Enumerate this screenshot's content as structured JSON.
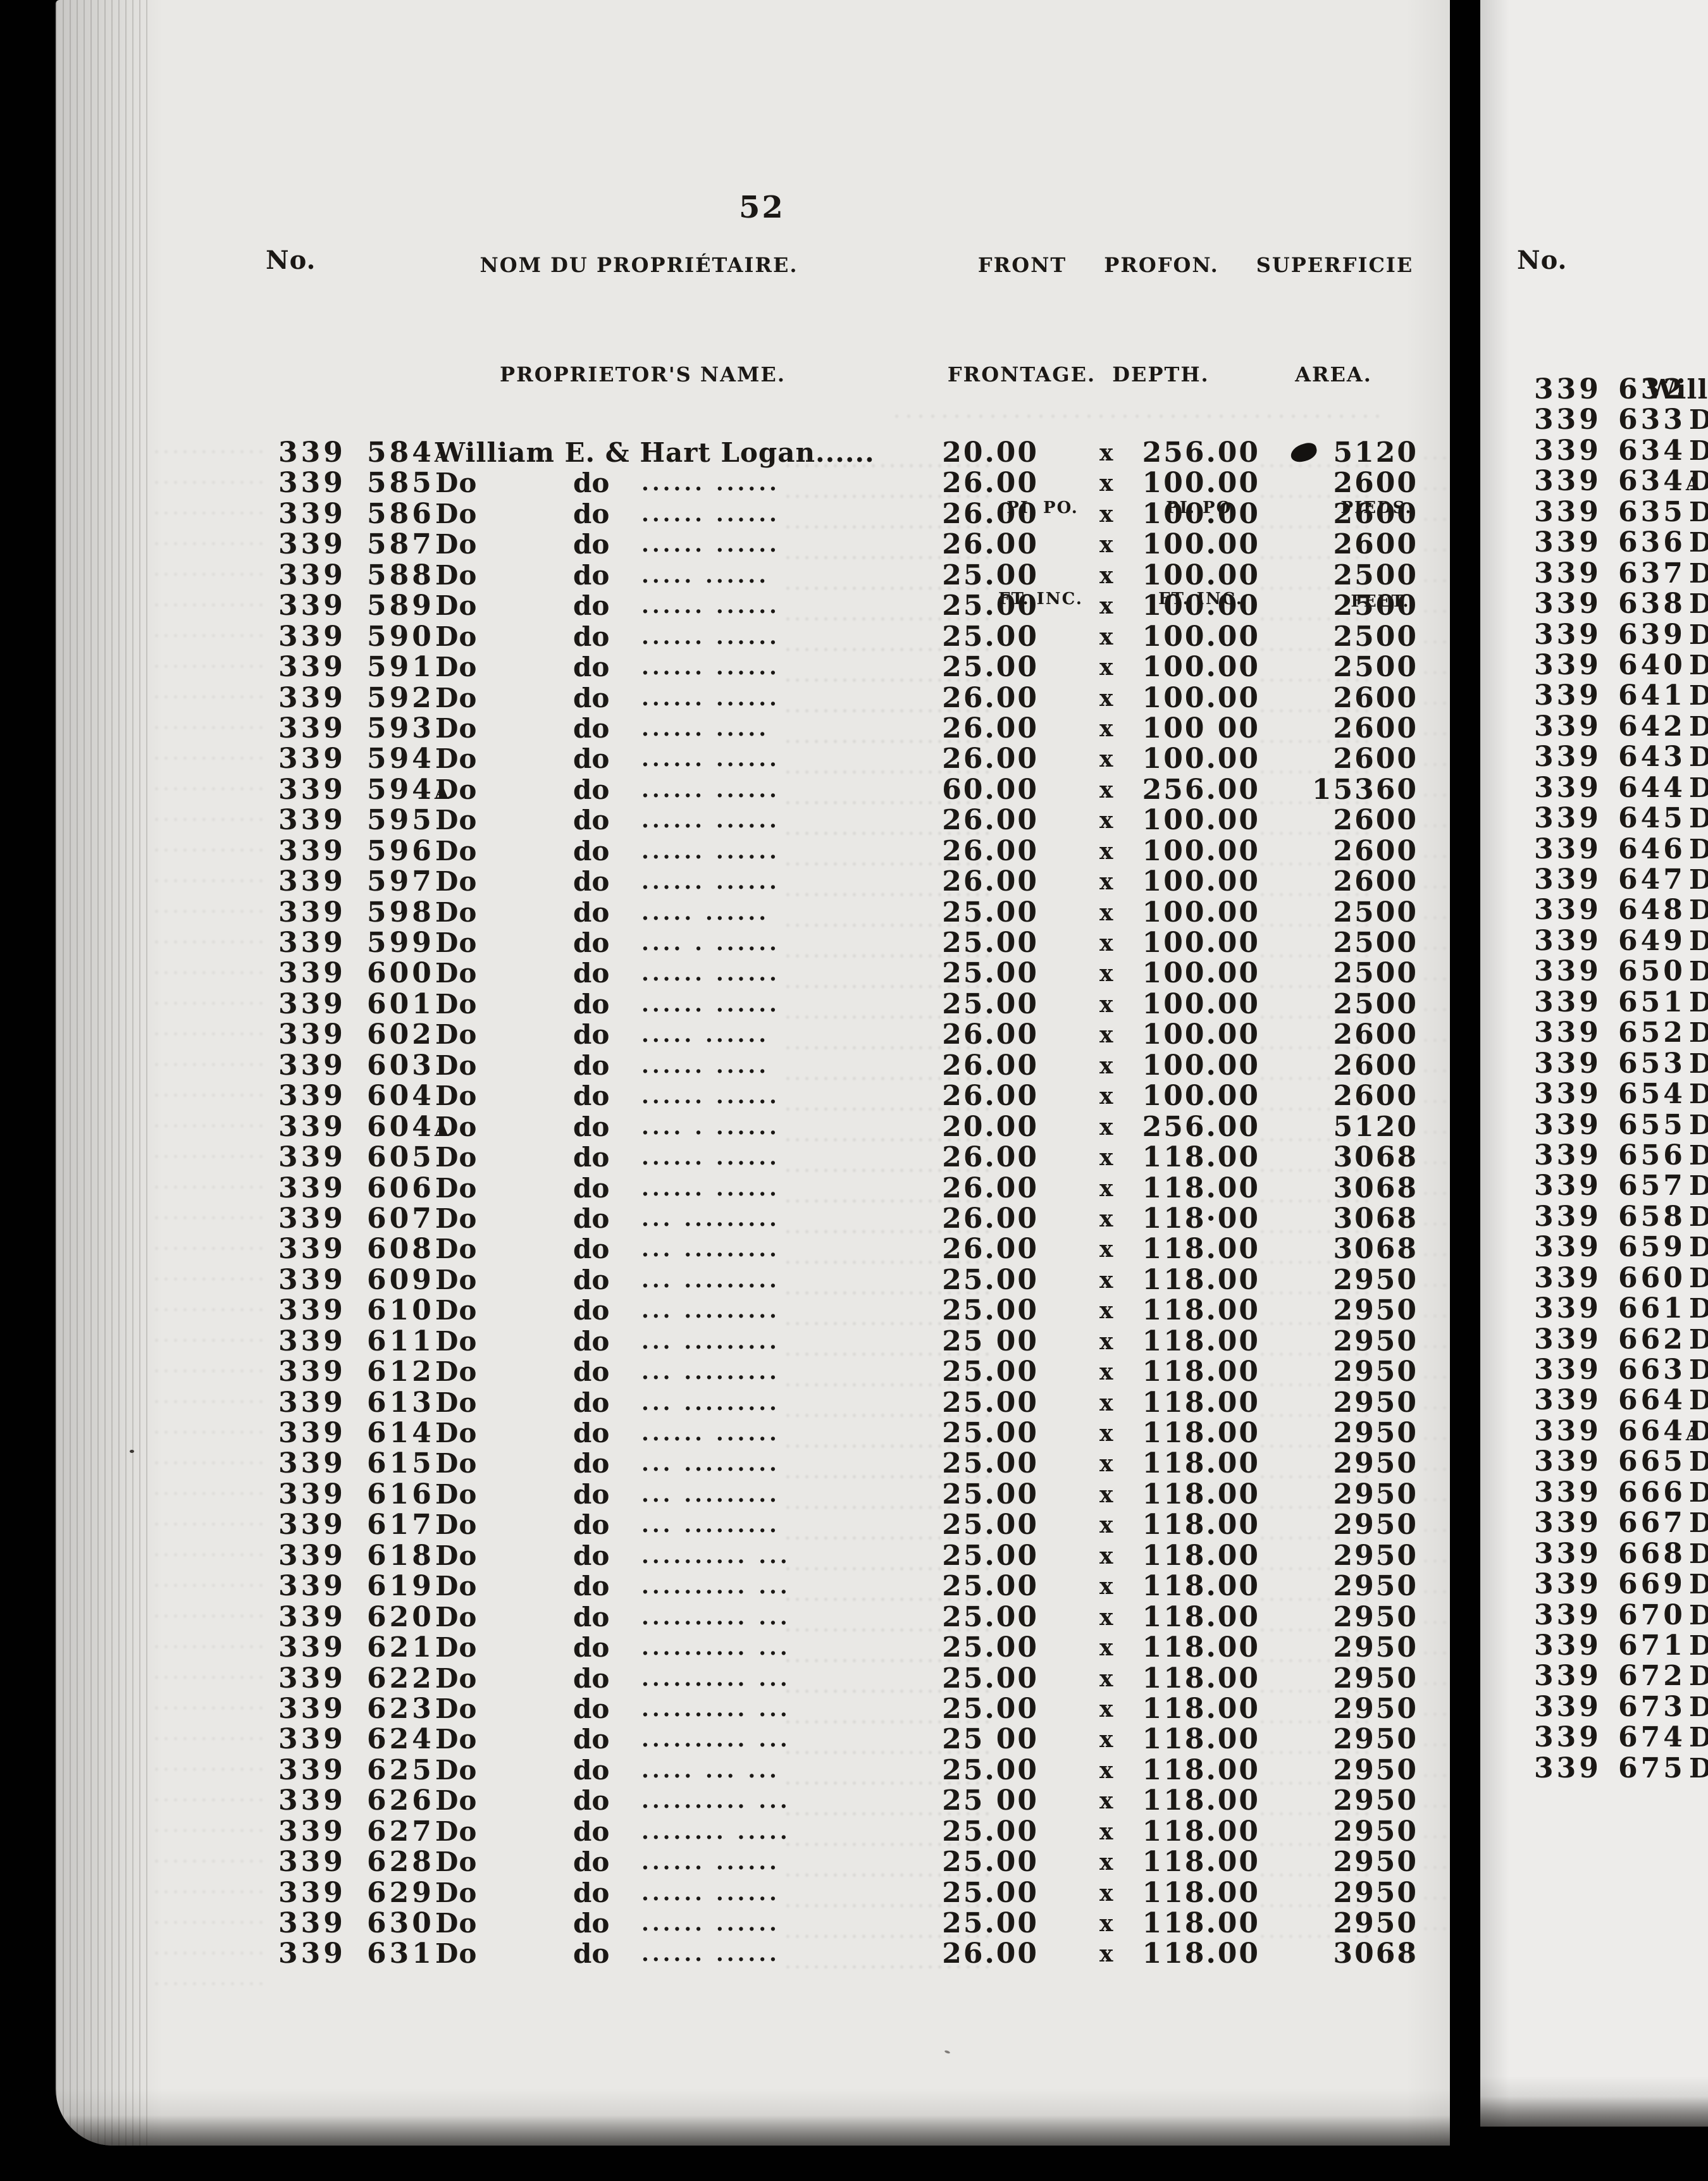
{
  "page_number": "52",
  "colors": {
    "background": "#010101",
    "paper_left": "#e9e8e5",
    "paper_right": "#edecea",
    "ink": "#1b1815"
  },
  "left_page": {
    "headers": {
      "no": "No.",
      "name_fr": "NOM DU PROPRIÉTAIRE.",
      "name_en": "PROPRIETOR'S NAME.",
      "front_fr": "FRONT",
      "front_en": "FRONTAGE.",
      "depth_fr": "PROFON.",
      "depth_en": "DEPTH.",
      "area_fr": "SUPERFICIE",
      "area_en": "AREA."
    },
    "units": {
      "pi_po": "PI. PO.",
      "ft_inc": "FT. INC.",
      "pieds": "PIEDS.",
      "feet": "FEET."
    },
    "dim_separator": "x",
    "rows": [
      {
        "no": "339",
        "lot": "584A",
        "name": "William E. & Hart Logan",
        "dots": "......",
        "front": "20.00",
        "depth": "256.00",
        "area": "5120"
      },
      {
        "no": "339",
        "lot": "585",
        "name": "Do",
        "name2": "do",
        "dots": "...... ......",
        "front": "26.00",
        "depth": "100.00",
        "area": "2600"
      },
      {
        "no": "339",
        "lot": "586",
        "name": "Do",
        "name2": "do",
        "dots": "...... ......",
        "front": "26.00",
        "depth": "100.00",
        "area": "2600"
      },
      {
        "no": "339",
        "lot": "587",
        "name": "Do",
        "name2": "do",
        "dots": "...... ......",
        "front": "26.00",
        "depth": "100.00",
        "area": "2600"
      },
      {
        "no": "339",
        "lot": "588",
        "name": "Do",
        "name2": "do",
        "dots": "..... ......",
        "front": "25.00",
        "depth": "100.00",
        "area": "2500"
      },
      {
        "no": "339",
        "lot": "589",
        "name": "Do",
        "name2": "do",
        "dots": "...... ......",
        "front": "25.00",
        "depth": "100.00",
        "area": "2500"
      },
      {
        "no": "339",
        "lot": "590",
        "name": "Do",
        "name2": "do",
        "dots": "...... ......",
        "front": "25.00",
        "depth": "100.00",
        "area": "2500"
      },
      {
        "no": "339",
        "lot": "591",
        "name": "Do",
        "name2": "do",
        "dots": "...... ......",
        "front": "25.00",
        "depth": "100.00",
        "area": "2500"
      },
      {
        "no": "339",
        "lot": "592",
        "name": "Do",
        "name2": "do",
        "dots": "...... ......",
        "front": "26.00",
        "depth": "100.00",
        "area": "2600"
      },
      {
        "no": "339",
        "lot": "593",
        "name": "Do",
        "name2": "do",
        "dots": "...... .....",
        "front": "26.00",
        "depth": "100 00",
        "area": "2600"
      },
      {
        "no": "339",
        "lot": "594",
        "name": "Do",
        "name2": "do",
        "dots": "...... ......",
        "front": "26.00",
        "depth": "100.00",
        "area": "2600"
      },
      {
        "no": "339",
        "lot": "594A",
        "name": "Do",
        "name2": "do",
        "dots": "...... ......",
        "front": "60.00",
        "depth": "256.00",
        "area": "15360"
      },
      {
        "no": "339",
        "lot": "595",
        "name": "Do",
        "name2": "do",
        "dots": "...... ......",
        "front": "26.00",
        "depth": "100.00",
        "area": "2600"
      },
      {
        "no": "339",
        "lot": "596",
        "name": "Do",
        "name2": "do",
        "dots": "...... ......",
        "front": "26.00",
        "depth": "100.00",
        "area": "2600"
      },
      {
        "no": "339",
        "lot": "597",
        "name": "Do",
        "name2": "do",
        "dots": "...... ......",
        "front": "26.00",
        "depth": "100.00",
        "area": "2600"
      },
      {
        "no": "339",
        "lot": "598",
        "name": "Do",
        "name2": "do",
        "dots": "..... ......",
        "front": "25.00",
        "depth": "100.00",
        "area": "2500"
      },
      {
        "no": "339",
        "lot": "599",
        "name": "Do",
        "name2": "do",
        "dots": ".... . ......",
        "front": "25.00",
        "depth": "100.00",
        "area": "2500"
      },
      {
        "no": "339",
        "lot": "600",
        "name": "Do",
        "name2": "do",
        "dots": "...... ......",
        "front": "25.00",
        "depth": "100.00",
        "area": "2500"
      },
      {
        "no": "339",
        "lot": "601",
        "name": "Do",
        "name2": "do",
        "dots": "...... ......",
        "front": "25.00",
        "depth": "100.00",
        "area": "2500"
      },
      {
        "no": "339",
        "lot": "602",
        "name": "Do",
        "name2": "do",
        "dots": "..... ......",
        "front": "26.00",
        "depth": "100.00",
        "area": "2600"
      },
      {
        "no": "339",
        "lot": "603",
        "name": "Do",
        "name2": "do",
        "dots": "...... .....",
        "front": "26.00",
        "depth": "100.00",
        "area": "2600"
      },
      {
        "no": "339",
        "lot": "604",
        "name": "Do",
        "name2": "do",
        "dots": "...... ......",
        "front": "26.00",
        "depth": "100.00",
        "area": "2600"
      },
      {
        "no": "339",
        "lot": "604A",
        "name": "Do",
        "name2": "do",
        "dots": ".... . ......",
        "front": "20.00",
        "depth": "256.00",
        "area": "5120"
      },
      {
        "no": "339",
        "lot": "605",
        "name": "Do",
        "name2": "do",
        "dots": "...... ......",
        "front": "26.00",
        "depth": "118.00",
        "area": "3068"
      },
      {
        "no": "339",
        "lot": "606",
        "name": "Do",
        "name2": "do",
        "dots": "...... ......",
        "front": "26.00",
        "depth": "118.00",
        "area": "3068"
      },
      {
        "no": "339",
        "lot": "607",
        "name": "Do",
        "name2": "do",
        "dots": "... .........",
        "front": "26.00",
        "depth": "118·00",
        "area": "3068"
      },
      {
        "no": "339",
        "lot": "608",
        "name": "Do",
        "name2": "do",
        "dots": "... .........",
        "front": "26.00",
        "depth": "118.00",
        "area": "3068"
      },
      {
        "no": "339",
        "lot": "609",
        "name": "Do",
        "name2": "do",
        "dots": "... .........",
        "front": "25.00",
        "depth": "118.00",
        "area": "2950"
      },
      {
        "no": "339",
        "lot": "610",
        "name": "Do",
        "name2": "do",
        "dots": "... .........",
        "front": "25.00",
        "depth": "118.00",
        "area": "2950"
      },
      {
        "no": "339",
        "lot": "611",
        "name": "Do",
        "name2": "do",
        "dots": "... .........",
        "front": "25 00",
        "depth": "118.00",
        "area": "2950"
      },
      {
        "no": "339",
        "lot": "612",
        "name": "Do",
        "name2": "do",
        "dots": "... .........",
        "front": "25.00",
        "depth": "118.00",
        "area": "2950"
      },
      {
        "no": "339",
        "lot": "613",
        "name": "Do",
        "name2": "do",
        "dots": "... .........",
        "front": "25.00",
        "depth": "118.00",
        "area": "2950"
      },
      {
        "no": "339",
        "lot": "614",
        "name": "Do",
        "name2": "do",
        "dots": "...... ......",
        "front": "25.00",
        "depth": "118.00",
        "area": "2950"
      },
      {
        "no": "339",
        "lot": "615",
        "name": "Do",
        "name2": "do",
        "dots": "... .........",
        "front": "25.00",
        "depth": "118.00",
        "area": "2950"
      },
      {
        "no": "339",
        "lot": "616",
        "name": "Do",
        "name2": "do",
        "dots": "... .........",
        "front": "25.00",
        "depth": "118.00",
        "area": "2950"
      },
      {
        "no": "339",
        "lot": "617",
        "name": "Do",
        "name2": "do",
        "dots": "... .........",
        "front": "25.00",
        "depth": "118.00",
        "area": "2950"
      },
      {
        "no": "339",
        "lot": "618",
        "name": "Do",
        "name2": "do",
        "dots": ".......... ...",
        "front": "25.00",
        "depth": "118.00",
        "area": "2950"
      },
      {
        "no": "339",
        "lot": "619",
        "name": "Do",
        "name2": "do",
        "dots": ".......... ...",
        "front": "25.00",
        "depth": "118.00",
        "area": "2950"
      },
      {
        "no": "339",
        "lot": "620",
        "name": "Do",
        "name2": "do",
        "dots": ".......... ...",
        "front": "25.00",
        "depth": "118.00",
        "area": "2950"
      },
      {
        "no": "339",
        "lot": "621",
        "name": "Do",
        "name2": "do",
        "dots": ".......... ...",
        "front": "25.00",
        "depth": "118.00",
        "area": "2950"
      },
      {
        "no": "339",
        "lot": "622",
        "name": "Do",
        "name2": "do",
        "dots": ".......... ...",
        "front": "25.00",
        "depth": "118.00",
        "area": "2950"
      },
      {
        "no": "339",
        "lot": "623",
        "name": "Do",
        "name2": "do",
        "dots": ".......... ...",
        "front": "25.00",
        "depth": "118.00",
        "area": "2950"
      },
      {
        "no": "339",
        "lot": "624",
        "name": "Do",
        "name2": "do",
        "dots": ".......... ...",
        "front": "25 00",
        "depth": "118.00",
        "area": "2950"
      },
      {
        "no": "339",
        "lot": "625",
        "name": "Do",
        "name2": "do",
        "dots": "..... ... ...",
        "front": "25.00",
        "depth": "118.00",
        "area": "2950"
      },
      {
        "no": "339",
        "lot": "626",
        "name": "Do",
        "name2": "do",
        "dots": ".......... ...",
        "front": "25 00",
        "depth": "118.00",
        "area": "2950"
      },
      {
        "no": "339",
        "lot": "627",
        "name": "Do",
        "name2": "do",
        "dots": "........ .....",
        "front": "25.00",
        "depth": "118.00",
        "area": "2950"
      },
      {
        "no": "339",
        "lot": "628",
        "name": "Do",
        "name2": "do",
        "dots": "...... ......",
        "front": "25.00",
        "depth": "118.00",
        "area": "2950"
      },
      {
        "no": "339",
        "lot": "629",
        "name": "Do",
        "name2": "do",
        "dots": "...... ......",
        "front": "25.00",
        "depth": "118.00",
        "area": "2950"
      },
      {
        "no": "339",
        "lot": "630",
        "name": "Do",
        "name2": "do",
        "dots": "...... ......",
        "front": "25.00",
        "depth": "118.00",
        "area": "2950"
      },
      {
        "no": "339",
        "lot": "631",
        "name": "Do",
        "name2": "do",
        "dots": "...... ......",
        "front": "26.00",
        "depth": "118.00",
        "area": "3068"
      }
    ]
  },
  "right_page": {
    "header_no": "No.",
    "rows": [
      {
        "no": "339",
        "lot": "632",
        "name": "Will"
      },
      {
        "no": "339",
        "lot": "633",
        "name": "D"
      },
      {
        "no": "339",
        "lot": "634",
        "name": "D"
      },
      {
        "no": "339",
        "lot": "634A",
        "name": "D"
      },
      {
        "no": "339",
        "lot": "635",
        "name": "D"
      },
      {
        "no": "339",
        "lot": "636",
        "name": "D"
      },
      {
        "no": "339",
        "lot": "637",
        "name": "D"
      },
      {
        "no": "339",
        "lot": "638",
        "name": "D"
      },
      {
        "no": "339",
        "lot": "639",
        "name": "D"
      },
      {
        "no": "339",
        "lot": "640",
        "name": "D"
      },
      {
        "no": "339",
        "lot": "641",
        "name": "D"
      },
      {
        "no": "339",
        "lot": "642",
        "name": "D"
      },
      {
        "no": "339",
        "lot": "643",
        "name": "D"
      },
      {
        "no": "339",
        "lot": "644",
        "name": "D"
      },
      {
        "no": "339",
        "lot": "645",
        "name": "D"
      },
      {
        "no": "339",
        "lot": "646",
        "name": "D"
      },
      {
        "no": "339",
        "lot": "647",
        "name": "D"
      },
      {
        "no": "339",
        "lot": "648",
        "name": "D"
      },
      {
        "no": "339",
        "lot": "649",
        "name": "D"
      },
      {
        "no": "339",
        "lot": "650",
        "name": "D"
      },
      {
        "no": "339",
        "lot": "651",
        "name": "D"
      },
      {
        "no": "339",
        "lot": "652",
        "name": "D"
      },
      {
        "no": "339",
        "lot": "653",
        "name": "D"
      },
      {
        "no": "339",
        "lot": "654",
        "name": "D"
      },
      {
        "no": "339",
        "lot": "655",
        "name": "D"
      },
      {
        "no": "339",
        "lot": "656",
        "name": "D"
      },
      {
        "no": "339",
        "lot": "657",
        "name": "D"
      },
      {
        "no": "339",
        "lot": "658",
        "name": "D"
      },
      {
        "no": "339",
        "lot": "659",
        "name": "D"
      },
      {
        "no": "339",
        "lot": "660",
        "name": "D"
      },
      {
        "no": "339",
        "lot": "661",
        "name": "D"
      },
      {
        "no": "339",
        "lot": "662",
        "name": "D"
      },
      {
        "no": "339",
        "lot": "663",
        "name": "D"
      },
      {
        "no": "339",
        "lot": "664",
        "name": "D"
      },
      {
        "no": "339",
        "lot": "664A",
        "name": "D"
      },
      {
        "no": "339",
        "lot": "665",
        "name": "D"
      },
      {
        "no": "339",
        "lot": "666",
        "name": "D"
      },
      {
        "no": "339",
        "lot": "667",
        "name": "D"
      },
      {
        "no": "339",
        "lot": "668",
        "name": "D"
      },
      {
        "no": "339",
        "lot": "669",
        "name": "D"
      },
      {
        "no": "339",
        "lot": "670",
        "name": "D"
      },
      {
        "no": "339",
        "lot": "671",
        "name": "D"
      },
      {
        "no": "339",
        "lot": "672",
        "name": "D"
      },
      {
        "no": "339",
        "lot": "673",
        "name": "D"
      },
      {
        "no": "339",
        "lot": "674",
        "name": "D"
      },
      {
        "no": "339",
        "lot": "675",
        "name": "D"
      }
    ]
  }
}
